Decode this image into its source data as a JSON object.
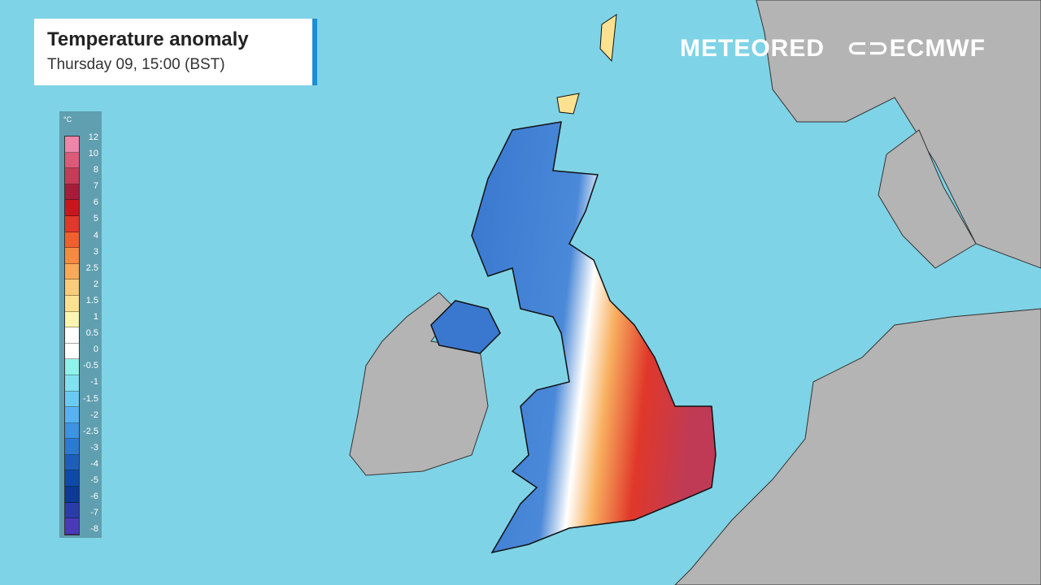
{
  "header": {
    "title": "Temperature anomaly",
    "subtitle": "Thursday 09, 15:00 (BST)"
  },
  "legend": {
    "unit": "°C",
    "labels": [
      "12",
      "10",
      "8",
      "7",
      "6",
      "5",
      "4",
      "3",
      "2.5",
      "2",
      "1.5",
      "1",
      "0.5",
      "0",
      "-0.5",
      "-1",
      "-1.5",
      "-2",
      "-2.5",
      "-3",
      "-4",
      "-5",
      "-6",
      "-7",
      "-8"
    ],
    "colors": [
      "#f084aa",
      "#dc5a78",
      "#c43c58",
      "#a61c3a",
      "#c8161f",
      "#e0382a",
      "#f0602e",
      "#f58a42",
      "#f8aa58",
      "#f8cc7a",
      "#fce290",
      "#fdf6b2",
      "#ffffff",
      "#ffffff",
      "#90f2ea",
      "#82e0f2",
      "#6ccaf2",
      "#58b2f2",
      "#3e92e2",
      "#2c7ad2",
      "#1c5eba",
      "#0e4aa8",
      "#0c3a94",
      "#2a3ca8",
      "#4a3ab8"
    ]
  },
  "branding": {
    "meteored": "METEORED",
    "ecmwf": "ECMWF"
  },
  "colors": {
    "sea": "#7fd3e6",
    "land": "#b4b4b4",
    "warm": "#d24a4a",
    "cold": "#3a78d0"
  }
}
